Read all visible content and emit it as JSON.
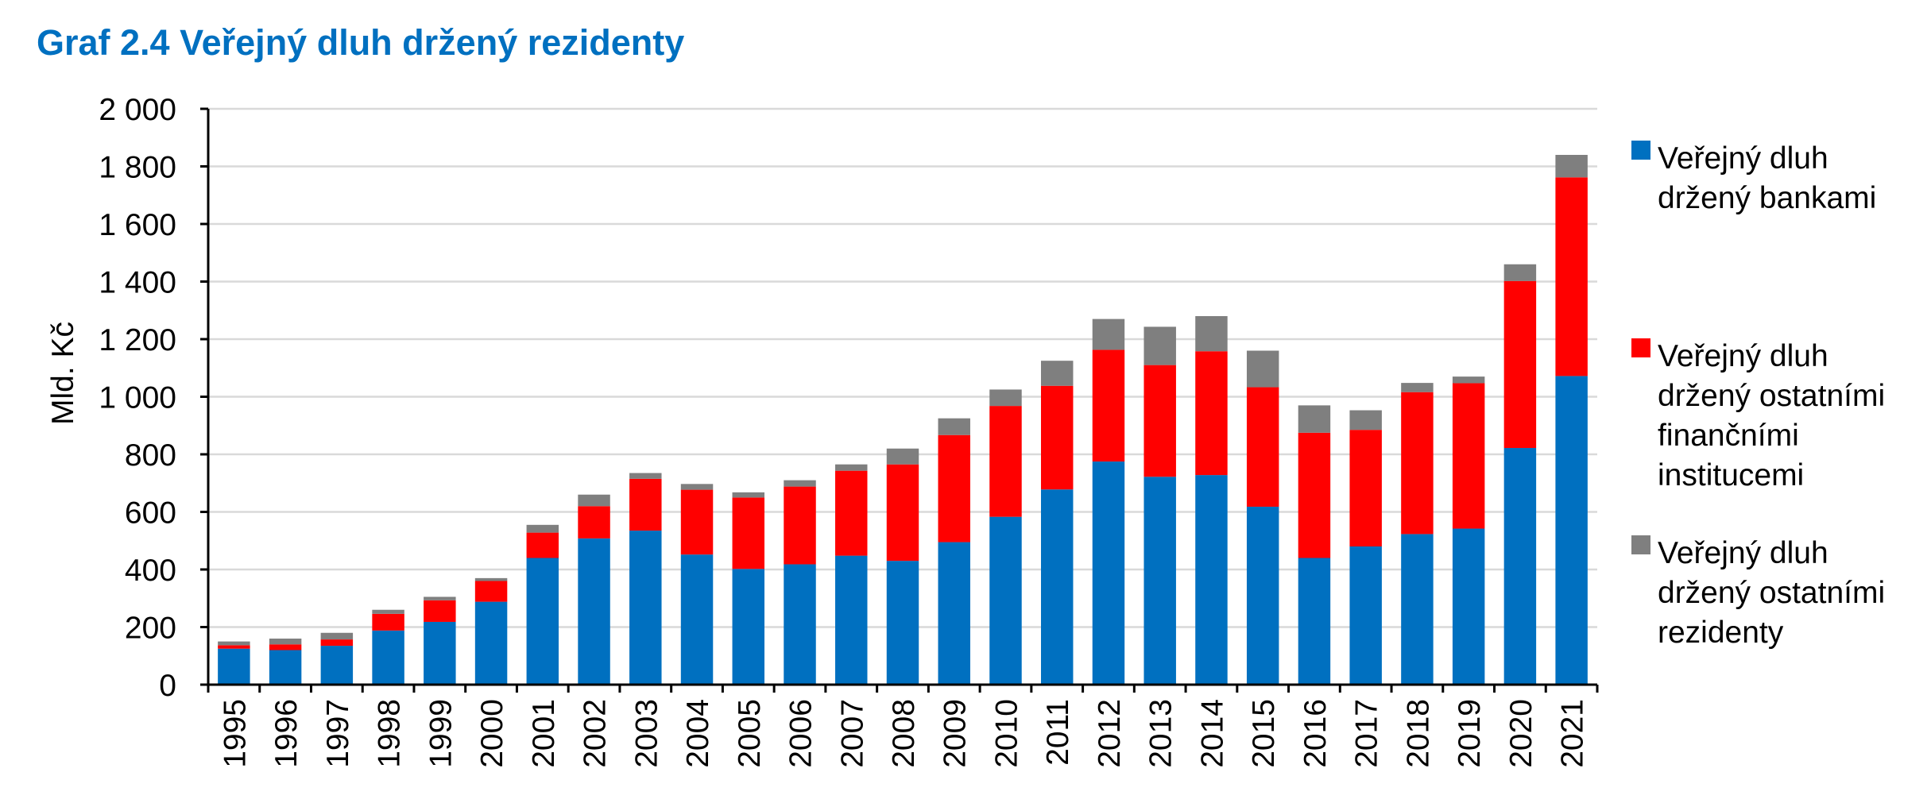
{
  "title": "Graf 2.4 Veřejný dluh držený rezidenty",
  "colors": {
    "title": "#0070c0",
    "banks": "#0070c0",
    "other_financial": "#ff0000",
    "other_residents": "#7f7f7f",
    "grid": "#d9d9d9",
    "axis": "#000000"
  },
  "chart_data": {
    "type": "bar",
    "stacked": true,
    "categories": [
      "1995",
      "1996",
      "1997",
      "1998",
      "1999",
      "2000",
      "2001",
      "2002",
      "2003",
      "2004",
      "2005",
      "2006",
      "2007",
      "2008",
      "2009",
      "2010",
      "2011",
      "2012",
      "2013",
      "2014",
      "2015",
      "2016",
      "2017",
      "2018",
      "2019",
      "2020",
      "2021"
    ],
    "series": [
      {
        "name_lines": [
          "Veřejný dluh",
          "držený bankami"
        ],
        "color": "#0070c0",
        "values": [
          125,
          120,
          135,
          188,
          218,
          288,
          440,
          508,
          535,
          452,
          402,
          418,
          448,
          430,
          495,
          583,
          678,
          775,
          722,
          728,
          618,
          440,
          480,
          523,
          542,
          822,
          1072
        ]
      },
      {
        "name_lines": [
          "Veřejný dluh",
          "držený ostatními",
          "finančními",
          "institucemi"
        ],
        "color": "#ff0000",
        "values": [
          12,
          20,
          22,
          58,
          75,
          72,
          88,
          112,
          180,
          225,
          248,
          270,
          295,
          335,
          372,
          385,
          360,
          388,
          388,
          430,
          415,
          435,
          405,
          493,
          505,
          580,
          690
        ]
      },
      {
        "name_lines": [
          "Veřejný dluh",
          "držený ostatními",
          "rezidenty"
        ],
        "color": "#7f7f7f",
        "values": [
          13,
          20,
          23,
          14,
          12,
          10,
          27,
          40,
          20,
          20,
          18,
          22,
          22,
          55,
          58,
          57,
          87,
          107,
          133,
          122,
          127,
          95,
          68,
          32,
          23,
          58,
          78
        ]
      }
    ],
    "ylabel": "Mld. Kč",
    "xlabel": "",
    "ylim": [
      0,
      2000
    ],
    "yticks": [
      0,
      200,
      400,
      600,
      800,
      1000,
      1200,
      1400,
      1600,
      1800,
      2000
    ],
    "ytick_labels": [
      "0",
      "200",
      "400",
      "600",
      "800",
      "1 000",
      "1 200",
      "1 400",
      "1 600",
      "1 800",
      "2 000"
    ],
    "grid": true,
    "legend_position": "right"
  }
}
